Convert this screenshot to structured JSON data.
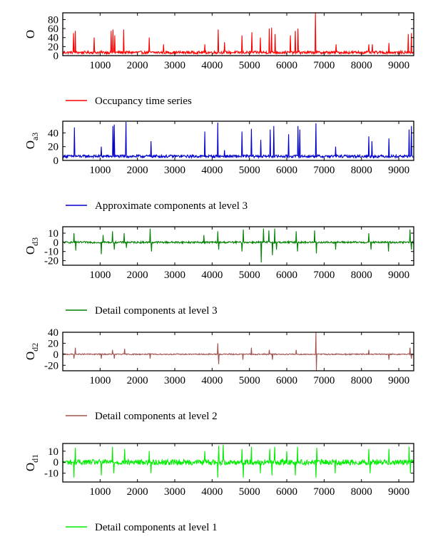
{
  "chart_data": [
    {
      "type": "line",
      "ylabel": "O",
      "ylabel_sub": "",
      "legend": "Occupancy time series",
      "color": "#ff0000",
      "xlim": [
        0,
        9400
      ],
      "ylim": [
        0,
        95
      ],
      "xticks": [
        1000,
        2000,
        3000,
        4000,
        5000,
        6000,
        7000,
        8000,
        9000
      ],
      "yticks": [
        0,
        20,
        40,
        60,
        80
      ],
      "series": [
        {
          "baseline": 7,
          "noise": 3,
          "spikes": [
            [
              290,
              50
            ],
            [
              340,
              55
            ],
            [
              840,
              40
            ],
            [
              1300,
              55
            ],
            [
              1340,
              58
            ],
            [
              1390,
              45
            ],
            [
              1630,
              58
            ],
            [
              2310,
              40
            ],
            [
              2700,
              25
            ],
            [
              3800,
              25
            ],
            [
              4160,
              58
            ],
            [
              4330,
              30
            ],
            [
              4800,
              45
            ],
            [
              5060,
              52
            ],
            [
              5290,
              40
            ],
            [
              5530,
              60
            ],
            [
              5590,
              62
            ],
            [
              5690,
              48
            ],
            [
              6090,
              45
            ],
            [
              6230,
              55
            ],
            [
              6300,
              60
            ],
            [
              6770,
              95
            ],
            [
              7320,
              25
            ],
            [
              8200,
              25
            ],
            [
              8290,
              25
            ],
            [
              8740,
              28
            ],
            [
              9250,
              48
            ],
            [
              9330,
              50
            ]
          ]
        }
      ]
    },
    {
      "type": "line",
      "ylabel": "O",
      "ylabel_sub": "a3",
      "legend": "Approximate components at level 3",
      "color": "#0000cc",
      "xlim": [
        0,
        9400
      ],
      "ylim": [
        0,
        57
      ],
      "xticks": [
        1000,
        2000,
        3000,
        4000,
        5000,
        6000,
        7000,
        8000,
        9000
      ],
      "yticks": [
        0,
        20,
        40
      ],
      "series": [
        {
          "baseline": 6,
          "noise": 2,
          "spikes": [
            [
              310,
              48
            ],
            [
              1030,
              20
            ],
            [
              1340,
              50
            ],
            [
              1380,
              52
            ],
            [
              1690,
              56
            ],
            [
              2360,
              28
            ],
            [
              3800,
              42
            ],
            [
              4150,
              55
            ],
            [
              4330,
              15
            ],
            [
              4800,
              42
            ],
            [
              5050,
              46
            ],
            [
              5300,
              30
            ],
            [
              5560,
              45
            ],
            [
              5650,
              50
            ],
            [
              6050,
              38
            ],
            [
              6300,
              50
            ],
            [
              6350,
              45
            ],
            [
              6780,
              54
            ],
            [
              7310,
              20
            ],
            [
              8200,
              35
            ],
            [
              8280,
              28
            ],
            [
              8730,
              32
            ],
            [
              9280,
              45
            ],
            [
              9340,
              50
            ]
          ]
        }
      ]
    },
    {
      "type": "line",
      "ylabel": "O",
      "ylabel_sub": "d3",
      "legend": "Detail components at level 3",
      "color": "#008000",
      "xlim": [
        0,
        9400
      ],
      "ylim": [
        -25,
        17
      ],
      "xticks": [
        1000,
        2000,
        3000,
        4000,
        5000,
        6000,
        7000,
        8000,
        9000
      ],
      "yticks": [
        -20,
        -10,
        0,
        10
      ],
      "series": [
        {
          "baseline": 0,
          "noise": 1,
          "spikes": [
            [
              300,
              10
            ],
            [
              350,
              -9
            ],
            [
              1030,
              -13
            ],
            [
              1080,
              8
            ],
            [
              1330,
              12
            ],
            [
              1380,
              -8
            ],
            [
              1640,
              10
            ],
            [
              1700,
              -6
            ],
            [
              2340,
              15
            ],
            [
              2370,
              -10
            ],
            [
              3780,
              8
            ],
            [
              4150,
              12
            ],
            [
              4180,
              -8
            ],
            [
              4800,
              -10
            ],
            [
              4830,
              14
            ],
            [
              5320,
              -22
            ],
            [
              5370,
              15
            ],
            [
              5520,
              13
            ],
            [
              5610,
              -14
            ],
            [
              5680,
              15
            ],
            [
              5720,
              -8
            ],
            [
              6250,
              12
            ],
            [
              6290,
              -10
            ],
            [
              6740,
              13
            ],
            [
              6790,
              -12
            ],
            [
              7310,
              -8
            ],
            [
              8200,
              10
            ],
            [
              8250,
              -8
            ],
            [
              8720,
              -10
            ],
            [
              9300,
              14
            ],
            [
              9340,
              -8
            ]
          ]
        }
      ]
    },
    {
      "type": "line",
      "ylabel": "O",
      "ylabel_sub": "d2",
      "legend": "Detail components at level 2",
      "color": "#a0524d",
      "xlim": [
        0,
        9400
      ],
      "ylim": [
        -30,
        40
      ],
      "xticks": [
        1000,
        2000,
        3000,
        4000,
        5000,
        6000,
        7000,
        8000,
        9000
      ],
      "yticks": [
        -20,
        0,
        20,
        40
      ],
      "series": [
        {
          "baseline": 0,
          "noise": 1,
          "spikes": [
            [
              300,
              -8
            ],
            [
              340,
              12
            ],
            [
              1030,
              -8
            ],
            [
              1330,
              8
            ],
            [
              1380,
              -8
            ],
            [
              1650,
              10
            ],
            [
              2340,
              -8
            ],
            [
              4150,
              20
            ],
            [
              4180,
              -18
            ],
            [
              4820,
              -10
            ],
            [
              5050,
              12
            ],
            [
              5530,
              8
            ],
            [
              5610,
              -10
            ],
            [
              6250,
              8
            ],
            [
              6780,
              40
            ],
            [
              6790,
              -30
            ],
            [
              8200,
              8
            ],
            [
              8740,
              -10
            ],
            [
              9300,
              12
            ],
            [
              9340,
              -8
            ]
          ]
        }
      ]
    },
    {
      "type": "line",
      "ylabel": "O",
      "ylabel_sub": "d1",
      "legend": "Detail components at level 1",
      "color": "#00ee00",
      "xlim": [
        0,
        9400
      ],
      "ylim": [
        -18,
        17
      ],
      "xticks": [
        1000,
        2000,
        3000,
        4000,
        5000,
        6000,
        7000,
        8000,
        9000
      ],
      "yticks": [
        -10,
        0,
        10
      ],
      "series": [
        {
          "baseline": 0,
          "noise": 2.5,
          "spikes": [
            [
              300,
              -14
            ],
            [
              330,
              13
            ],
            [
              1030,
              -12
            ],
            [
              1330,
              14
            ],
            [
              1370,
              -10
            ],
            [
              1650,
              12
            ],
            [
              2320,
              10
            ],
            [
              2360,
              -10
            ],
            [
              3800,
              10
            ],
            [
              4150,
              -14
            ],
            [
              4180,
              15
            ],
            [
              4300,
              16
            ],
            [
              4800,
              12
            ],
            [
              4830,
              -14
            ],
            [
              5050,
              14
            ],
            [
              5290,
              -10
            ],
            [
              5540,
              12
            ],
            [
              5600,
              -12
            ],
            [
              5680,
              14
            ],
            [
              6000,
              10
            ],
            [
              6230,
              -12
            ],
            [
              6290,
              14
            ],
            [
              6780,
              -14
            ],
            [
              6800,
              13
            ],
            [
              7300,
              -10
            ],
            [
              8200,
              12
            ],
            [
              8230,
              -10
            ],
            [
              8740,
              12
            ],
            [
              9280,
              14
            ],
            [
              9310,
              -10
            ]
          ]
        }
      ]
    }
  ]
}
